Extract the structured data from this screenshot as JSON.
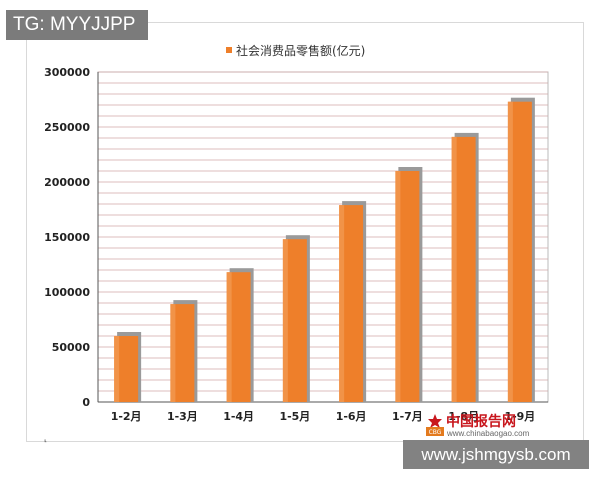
{
  "overlays": {
    "tg_label": "TG: MYYJJPP",
    "site_url": "www.jshmgysb.com",
    "corner_mark": "⸤"
  },
  "logo": {
    "name": "中国报告网",
    "url": "www.chinabaogao.com",
    "mark_text": "CBG"
  },
  "chart_data": {
    "type": "bar",
    "title": "",
    "categories": [
      "1-2月",
      "1-3月",
      "1-4月",
      "1-5月",
      "1-6月",
      "1-7月",
      "1-8月",
      "1-9月"
    ],
    "series": [
      {
        "name": "社会消费品零售额(亿元)",
        "values": [
          60000,
          89000,
          118000,
          148000,
          179000,
          210000,
          241000,
          273000
        ]
      }
    ],
    "xlabel": "",
    "ylabel": "",
    "ylim": [
      0,
      300000
    ],
    "yticks": [
      0,
      50000,
      100000,
      150000,
      200000,
      250000,
      300000
    ],
    "ytick_labels": [
      "0",
      "50000",
      "100000",
      "150000",
      "200000",
      "250000",
      "300000"
    ],
    "grid": true,
    "legend_position": "top",
    "colors": {
      "bar": "#ee7f2a",
      "bar_light": "#f4a05e",
      "shadow": "#9a9a9a",
      "grid": "#d0a7a7",
      "axis": "#555555",
      "plot_bg": "#ffffff",
      "plot_border": "#bbbbbb"
    }
  }
}
